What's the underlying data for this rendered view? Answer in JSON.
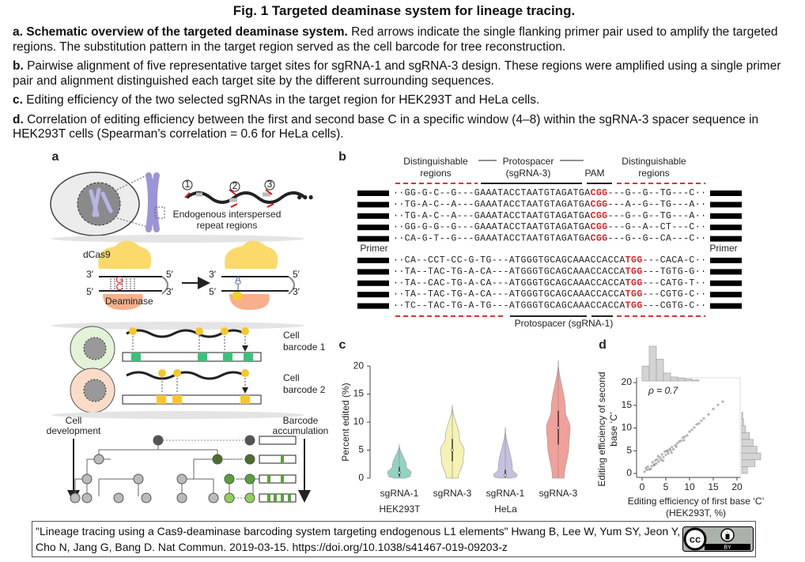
{
  "header": {
    "title": "Fig. 1 Targeted deaminase system for lineage tracing."
  },
  "caption": [
    {
      "bold": "a. Schematic overview of the targeted deaminase system.",
      "text": " Red arrows indicate the single flanking primer pair used to amplify the targeted regions. The substitution pattern in the target region served as the cell barcode for tree reconstruction."
    },
    {
      "bold": "b.",
      "text": " Pairwise alignment of five representative target sites for sgRNA-1 and sgRNA-3 design. These regions were amplified using a single primer pair and alignment distinguished each target site by the different surrounding sequences."
    },
    {
      "bold": "c.",
      "text": " Editing efficiency of the two selected sgRNAs in the target region for HEK293T and HeLa cells."
    },
    {
      "bold": "d.",
      "text": " Correlation of editing efficiency between the first and second base C in a specific window (4–8) within the sgRNA-3 spacer sequence in HEK293T cells (Spearman’s correlation = 0.6 for HeLa cells)."
    }
  ],
  "panel_a": {
    "label": "a",
    "sites": [
      "1",
      "2",
      "3"
    ],
    "repeat": [
      "Endogenous interspersed",
      "repeat regions"
    ],
    "dcas9": "dCas9",
    "prime3": "3′",
    "prime5": "5′",
    "before": [
      "G",
      "C"
    ],
    "after": [
      "A",
      "T"
    ],
    "deaminase": "Deaminase",
    "barcode1": [
      "Cell",
      "barcode 1"
    ],
    "barcode2": [
      "Cell",
      "barcode 2"
    ],
    "development": [
      "Cell",
      "development"
    ],
    "accumulation": [
      "Barcode",
      "accumulation"
    ]
  },
  "panel_b": {
    "label": "b",
    "regions": [
      "Distinguishable",
      "regions"
    ],
    "protospacer3": [
      "Protospacer",
      "(sgRNA-3)"
    ],
    "pam": "PAM",
    "primer": "Primer",
    "protospacer1": "Protospacer (sgRNA-1)",
    "sgrna3_rows": [
      {
        "left": "··GG-G-C--G---GAAATACCTAATGTAGATGA",
        "pam": "CGG",
        "right": "---G--G--TG---C··"
      },
      {
        "left": "··TG-A-C--A---GAAATACCTAATGTAGATGA",
        "pam": "CGG",
        "right": "---A--G--TG---A··"
      },
      {
        "left": "··TG-A-C--A---GAAATACCTAATGTAGATGA",
        "pam": "CGG",
        "right": "---G--G--TG---A··"
      },
      {
        "left": "··GG-G-G--G---GAAATACCTAATGTAGATGA",
        "pam": "CGG",
        "right": "---G--A--CT---C··"
      },
      {
        "left": "··CA-G-T--G---GAAATACCTAATGTAGATGA",
        "pam": "CGG",
        "right": "---G--G--CA---C··"
      }
    ],
    "sgrna1_rows": [
      {
        "left": "··CA--CCT-CC-G-TG---ATGGGTGCAGCAAACCACCA",
        "pam": "TGG",
        "right": "---CACA-C··"
      },
      {
        "left": "··TA--TAC-TG-A-CA---ATGGGTGCAGCAAACCACCA",
        "pam": "TGG",
        "right": "---TGTG-G··"
      },
      {
        "left": "··TA--CAC-TG-A-CA---ATGGGTGCAGCAAACCACCA",
        "pam": "TGG",
        "right": "---CATG-T··"
      },
      {
        "left": "··TA--TAC-TG-A-CA---ATGGGTGCAGCAAACCACCA",
        "pam": "TGG",
        "right": "---CGTG-C··"
      },
      {
        "left": "··TC--TAC-TG-A-TG---ATGGGTGCAGCAAACCACCA",
        "pam": "TGG",
        "right": "---CGTG-C··"
      }
    ]
  },
  "chart_data": [
    {
      "type": "violin",
      "label": "c",
      "ylabel": "Percent edited (%)",
      "categories": [
        "sgRNA-1",
        "sgRNA-3",
        "sgRNA-1",
        "sgRNA-3"
      ],
      "groups": [
        "HEK293T",
        "HeLa"
      ],
      "colors": [
        "#7fcbb9",
        "#f4f0a6",
        "#bcb5da",
        "#ef8f88"
      ],
      "min": [
        0,
        0,
        0,
        0
      ],
      "q1": [
        0.3,
        3,
        0.2,
        6
      ],
      "median": [
        1,
        5,
        0.5,
        9
      ],
      "q3": [
        2,
        7,
        1.5,
        12
      ],
      "max": [
        6,
        13,
        9,
        21
      ],
      "ylim": [
        -1,
        21
      ],
      "yticks": [
        0,
        5,
        10,
        15,
        20
      ]
    },
    {
      "type": "scatter",
      "label": "d",
      "annotation": "ρ = 0.7",
      "xlabel": [
        "Editing efficiency of first base ‘C’",
        "(HEK293T, %)"
      ],
      "ylabel": [
        "Editing efficiency of second",
        "base ‘C’"
      ],
      "color": "#777777",
      "x": [
        0.5,
        1,
        1.2,
        1.5,
        2,
        2.2,
        2.5,
        2.8,
        3,
        3.2,
        3.5,
        3.8,
        4,
        4.2,
        4.5,
        4.8,
        5,
        5.2,
        5.5,
        5.8,
        6,
        6.3,
        6.6,
        7,
        7.4,
        7.8,
        8.2,
        8.6,
        9,
        9.5,
        10,
        10.5,
        11,
        11.5,
        12,
        12.5,
        13,
        14,
        15,
        16,
        17,
        0.8,
        1.8,
        2.6,
        3.4,
        4.4,
        5.4,
        6.2,
        7.2,
        8.8
      ],
      "y": [
        0.4,
        0.8,
        1.5,
        0.9,
        1.6,
        2.5,
        1.8,
        2.9,
        2.2,
        3.1,
        2.6,
        3.5,
        3.0,
        4.2,
        3.6,
        4.8,
        4.1,
        5.0,
        4.4,
        5.4,
        5.1,
        5.8,
        5.3,
        6.2,
        6.6,
        7.0,
        7.2,
        7.9,
        8.1,
        8.4,
        9.2,
        9.6,
        10.1,
        10.8,
        11.0,
        11.6,
        12.1,
        13.0,
        14.2,
        15.1,
        15.8,
        1.2,
        1.0,
        2.0,
        3.8,
        2.8,
        4.9,
        4.6,
        5.9,
        7.3
      ],
      "xlim": [
        0,
        20
      ],
      "ylim": [
        0,
        20
      ],
      "xticks": [
        0,
        5,
        10,
        15,
        20
      ],
      "yticks": [
        0,
        5,
        10,
        15,
        20
      ],
      "top_histogram": {
        "bins": [
          0,
          1.5,
          3,
          4.5,
          6,
          7.5,
          9,
          10.5,
          12
        ],
        "counts": [
          15,
          35,
          22,
          8,
          4,
          3,
          2,
          1
        ]
      },
      "right_histogram": {
        "bins": [
          0,
          1.5,
          3,
          4.5,
          6,
          7.5,
          9,
          10.5,
          12,
          13.5
        ],
        "counts": [
          6,
          14,
          20,
          16,
          12,
          8,
          4,
          2,
          1
        ]
      }
    }
  ],
  "citation": {
    "lines": [
      "\"Lineage tracing using a Cas9-deaminase barcoding system targeting endogenous L1 elements\" Hwang B, Lee W, Yum SY, Jeon Y,",
      "Cho N, Jang G, Bang D. Nat Commun. 2019-03-15. https://doi.org/10.1038/s41467-019-09203-z"
    ],
    "badge": [
      "cc",
      "BY"
    ]
  }
}
